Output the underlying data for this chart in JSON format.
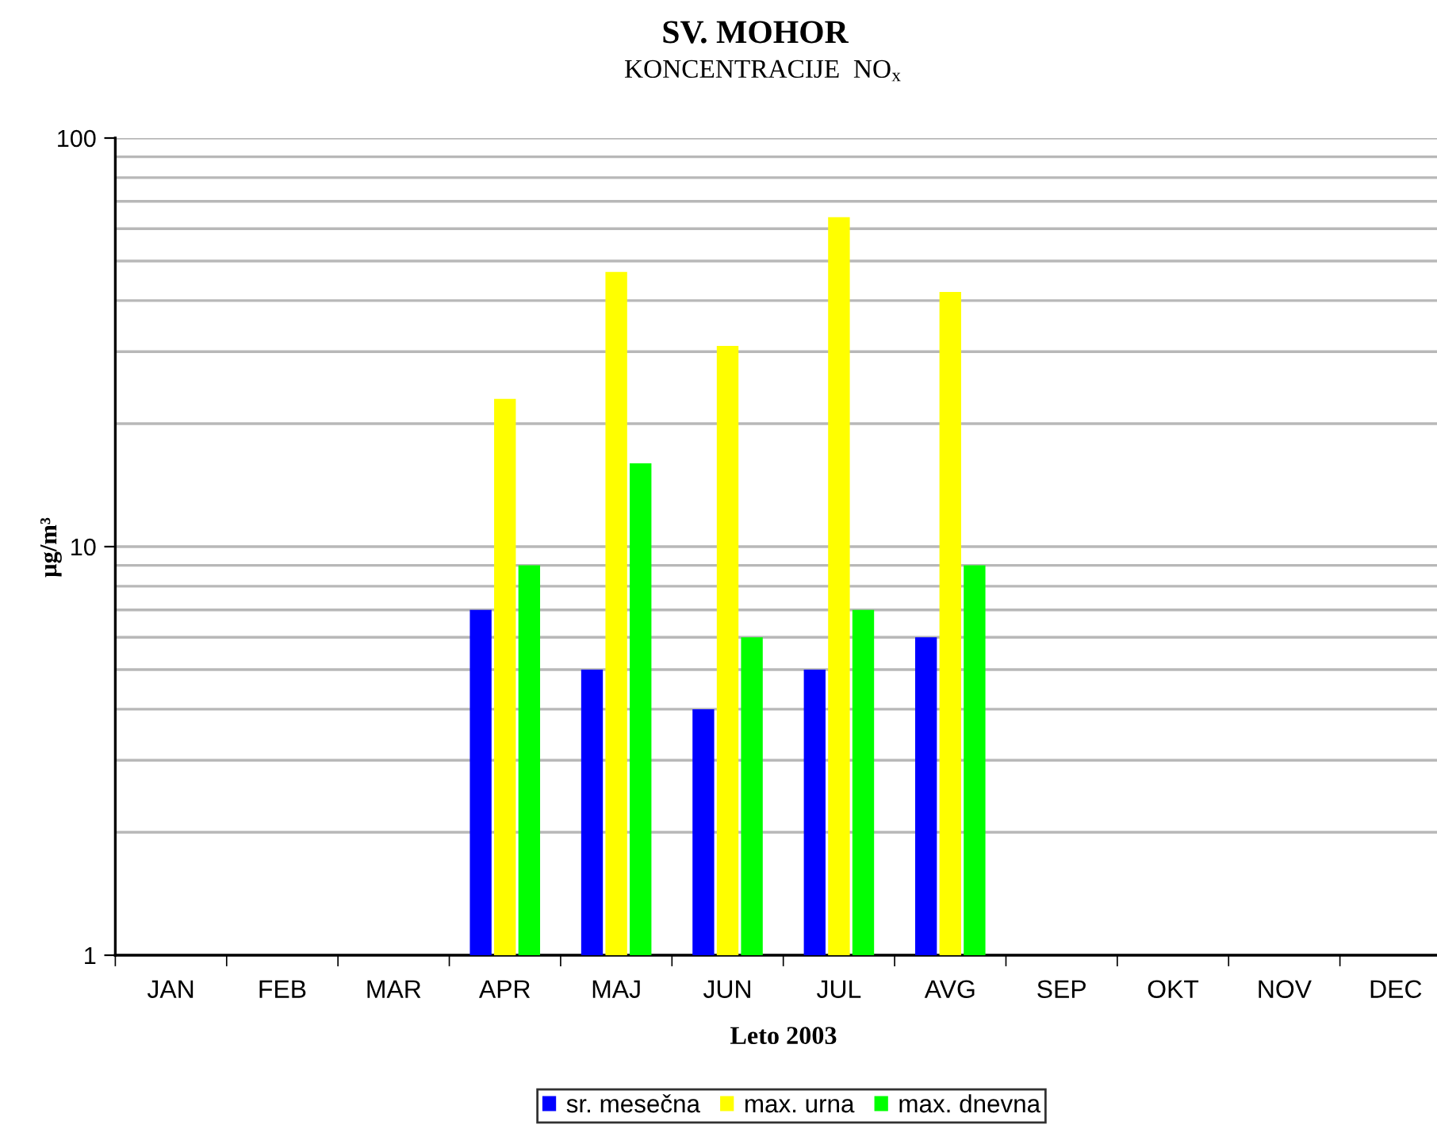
{
  "chart_data": {
    "type": "bar",
    "title": "SV. MOHOR",
    "subtitle": "KONCENTRACIJE  NO$_{x}$",
    "xlabel": "Leto 2003",
    "ylabel": "µg/m³",
    "categories": [
      "JAN",
      "FEB",
      "MAR",
      "APR",
      "MAJ",
      "JUN",
      "JUL",
      "AVG",
      "SEP",
      "OKT",
      "NOV",
      "DEC"
    ],
    "series": [
      {
        "name": "sr. mesečna",
        "color": "#0000ff",
        "values": [
          null,
          null,
          null,
          7,
          5,
          4,
          5,
          6,
          null,
          null,
          null,
          null
        ]
      },
      {
        "name": "max. urna",
        "color": "#ffff00",
        "values": [
          null,
          null,
          null,
          23,
          47,
          31,
          64,
          42,
          null,
          null,
          null,
          null
        ]
      },
      {
        "name": "max. dnevna",
        "color": "#00ff00",
        "values": [
          null,
          null,
          null,
          9,
          16,
          6,
          7,
          9,
          null,
          null,
          null,
          null
        ]
      }
    ],
    "log": true,
    "ylim": [
      1,
      100
    ],
    "yticks": [
      1,
      10,
      100
    ],
    "grid": "y",
    "legend": "bottom"
  }
}
